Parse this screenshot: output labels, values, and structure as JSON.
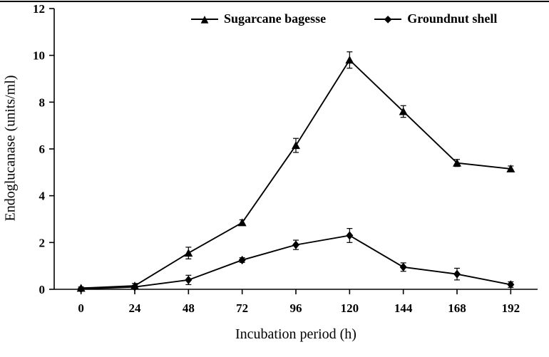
{
  "chart_data": {
    "type": "line",
    "title": "",
    "xlabel": "Incubation period (h)",
    "ylabel": "Endoglucanase (units/ml)",
    "categories": [
      0,
      24,
      48,
      72,
      96,
      120,
      144,
      168,
      192
    ],
    "ylim": [
      0,
      12
    ],
    "ytick_step": 2,
    "grid": false,
    "legend_position": "top",
    "axis_color": "#000000",
    "series": [
      {
        "name": "Sugarcane bagesse",
        "marker": "triangle",
        "color": "#000000",
        "values": [
          0.05,
          0.15,
          1.55,
          2.85,
          6.15,
          9.8,
          7.6,
          5.4,
          5.15
        ],
        "errors": [
          0.05,
          0.1,
          0.25,
          0.12,
          0.3,
          0.35,
          0.25,
          0.15,
          0.12
        ]
      },
      {
        "name": "Groundnut shell",
        "marker": "diamond",
        "color": "#000000",
        "values": [
          0.02,
          0.1,
          0.4,
          1.25,
          1.9,
          2.3,
          0.95,
          0.65,
          0.2
        ],
        "errors": [
          0.03,
          0.07,
          0.2,
          0.1,
          0.2,
          0.3,
          0.18,
          0.25,
          0.12
        ]
      }
    ]
  }
}
